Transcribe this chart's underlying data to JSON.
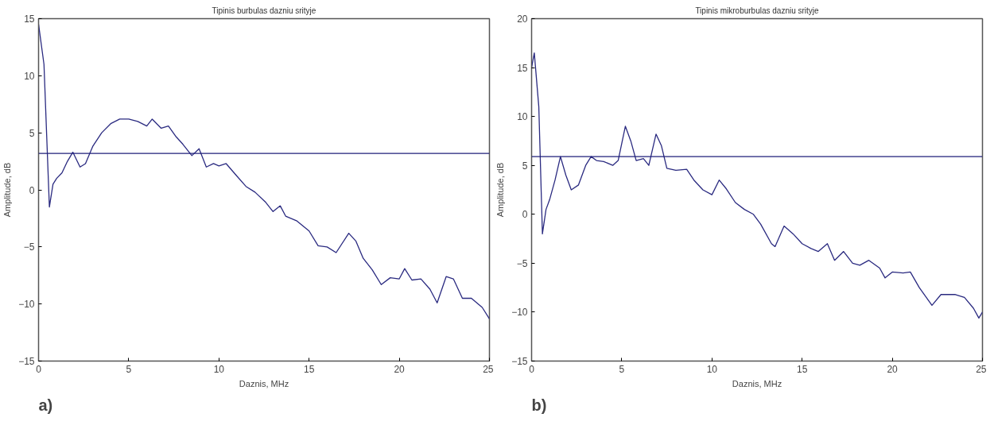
{
  "chart_data": [
    {
      "type": "line",
      "title": "Tipinis burbulas dazniu srityje",
      "xlabel": "Daznis, MHz",
      "ylabel": "Amplitude, dB",
      "xlim": [
        0,
        25
      ],
      "ylim": [
        -15,
        15
      ],
      "xticks": [
        0,
        5,
        10,
        15,
        20,
        25
      ],
      "yticks": [
        -15,
        -10,
        -5,
        0,
        5,
        10,
        15
      ],
      "annotations": [
        "a)"
      ],
      "ref_lines": [
        {
          "axis": "y",
          "value": 3.2,
          "color": "#1f1f7a"
        }
      ],
      "series": [
        {
          "color": "#2a2a80",
          "x": [
            0,
            0.3,
            0.6,
            0.8,
            1.0,
            1.3,
            1.6,
            1.9,
            2.3,
            2.6,
            3,
            3.5,
            4,
            4.5,
            5,
            5.5,
            6,
            6.3,
            6.8,
            7.2,
            7.6,
            8,
            8.5,
            8.9,
            9.3,
            9.7,
            10,
            10.4,
            11,
            11.5,
            12,
            12.6,
            13,
            13.4,
            13.7,
            14.3,
            15,
            15.5,
            16,
            16.5,
            17.2,
            17.6,
            18,
            18.5,
            19,
            19.5,
            20,
            20.3,
            20.7,
            21.2,
            21.7,
            22.1,
            22.6,
            23,
            23.5,
            24,
            24.6,
            25
          ],
          "values": [
            14.5,
            11,
            -1.5,
            0.5,
            1,
            1.5,
            2.5,
            3.3,
            2,
            2.3,
            3.8,
            5,
            5.8,
            6.2,
            6.2,
            6,
            5.6,
            6.2,
            5.4,
            5.6,
            4.7,
            4,
            3,
            3.6,
            2,
            2.3,
            2.1,
            2.3,
            1.2,
            0.3,
            -0.2,
            -1.1,
            -1.9,
            -1.4,
            -2.3,
            -2.7,
            -3.6,
            -4.9,
            -5,
            -5.5,
            -3.8,
            -4.5,
            -6,
            -7,
            -8.3,
            -7.7,
            -7.8,
            -6.9,
            -7.9,
            -7.8,
            -8.7,
            -9.9,
            -7.6,
            -7.8,
            -9.5,
            -9.5,
            -10.3,
            -11.3
          ]
        }
      ]
    },
    {
      "type": "line",
      "title": "Tipinis mikroburbulas dazniu srityje",
      "xlabel": "Daznis, MHz",
      "ylabel": "Amplitude, dB",
      "xlim": [
        0,
        25
      ],
      "ylim": [
        -15,
        20
      ],
      "xticks": [
        0,
        5,
        10,
        15,
        20,
        25
      ],
      "yticks": [
        -15,
        -10,
        -5,
        0,
        5,
        10,
        15,
        20
      ],
      "annotations": [
        "b)"
      ],
      "ref_lines": [
        {
          "axis": "y",
          "value": 5.9,
          "color": "#1f1f7a"
        }
      ],
      "series": [
        {
          "color": "#2a2a80",
          "x": [
            0,
            0.15,
            0.4,
            0.6,
            0.8,
            1.0,
            1.3,
            1.6,
            1.9,
            2.2,
            2.6,
            3.0,
            3.3,
            3.6,
            4.0,
            4.5,
            4.8,
            5.2,
            5.5,
            5.8,
            6.2,
            6.5,
            6.9,
            7.2,
            7.5,
            8,
            8.6,
            9,
            9.5,
            10,
            10.4,
            10.8,
            11.3,
            11.8,
            12.3,
            12.7,
            13.3,
            13.5,
            14,
            14.5,
            15,
            15.5,
            15.9,
            16.4,
            16.8,
            17.3,
            17.8,
            18.2,
            18.7,
            19.3,
            19.6,
            20,
            20.6,
            21.0,
            21.5,
            22.2,
            22.7,
            23.1,
            23.5,
            24,
            24.5,
            24.8,
            25
          ],
          "values": [
            15,
            16.5,
            11,
            -2,
            0.5,
            1.5,
            3.5,
            5.9,
            4,
            2.5,
            3,
            5,
            5.9,
            5.5,
            5.4,
            5,
            5.5,
            9,
            7.5,
            5.5,
            5.7,
            5,
            8.2,
            7,
            4.7,
            4.5,
            4.6,
            3.5,
            2.5,
            2,
            3.5,
            2.6,
            1.2,
            0.5,
            0,
            -1,
            -3,
            -3.3,
            -1.2,
            -2,
            -3,
            -3.5,
            -3.8,
            -3,
            -4.7,
            -3.8,
            -5,
            -5.2,
            -4.7,
            -5.5,
            -6.5,
            -5.9,
            -6,
            -5.9,
            -7.5,
            -9.3,
            -8.2,
            -8.2,
            -8.2,
            -8.5,
            -9.6,
            -10.6,
            -10
          ]
        }
      ]
    }
  ]
}
